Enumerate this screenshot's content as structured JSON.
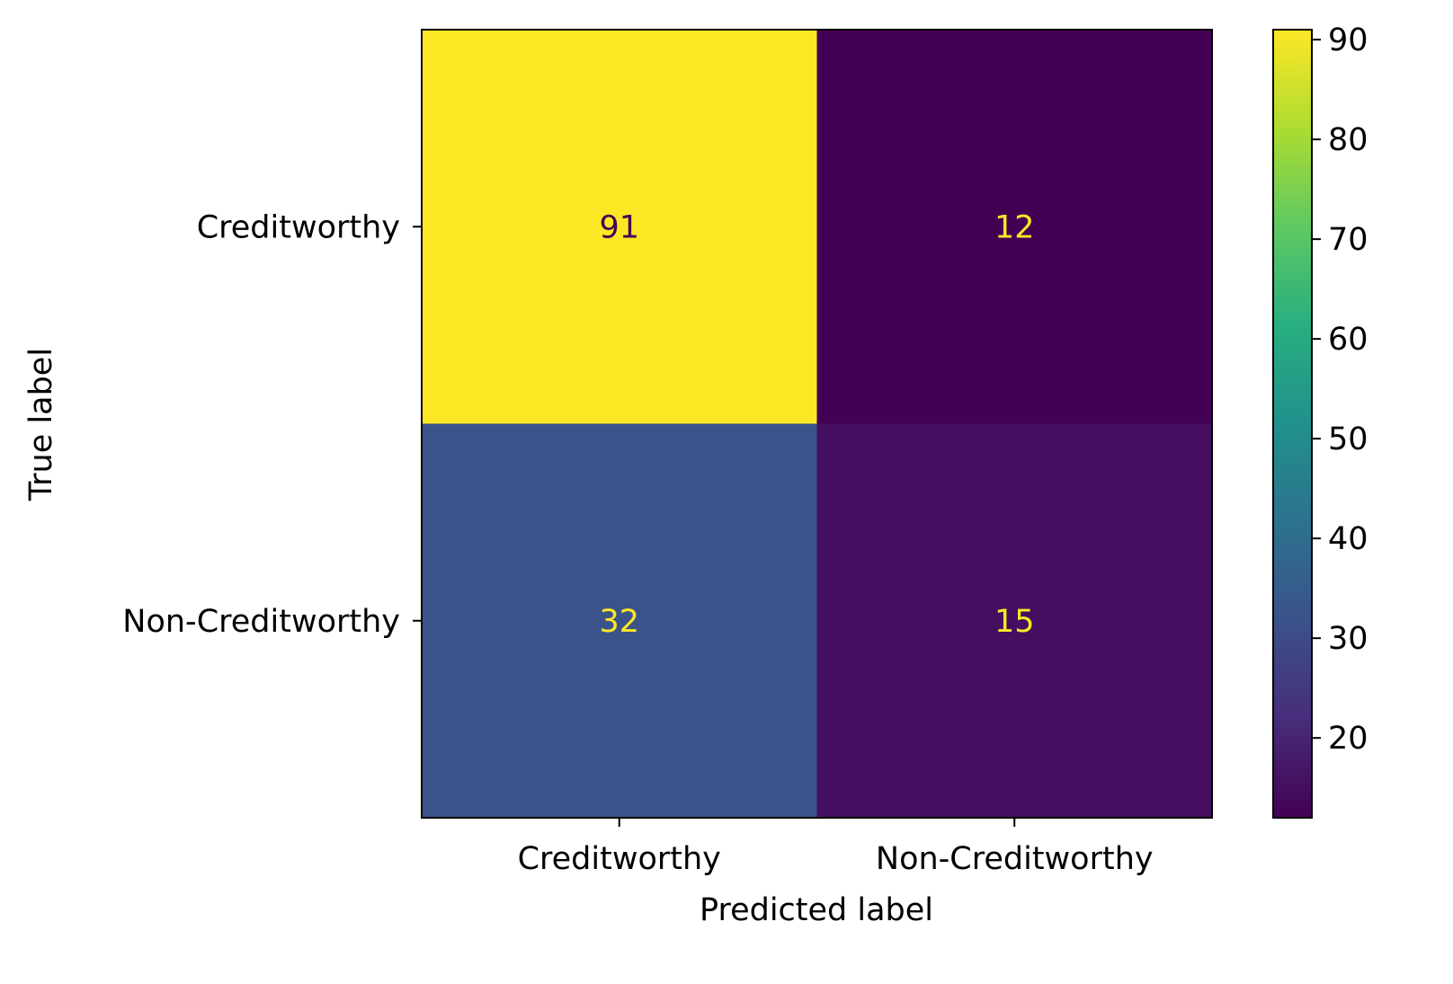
{
  "chart_data": {
    "type": "heatmap",
    "title": "",
    "xlabel": "Predicted label",
    "ylabel": "True label",
    "x_categories": [
      "Creditworthy",
      "Non-Creditworthy"
    ],
    "y_categories": [
      "Creditworthy",
      "Non-Creditworthy"
    ],
    "values": [
      [
        91,
        12
      ],
      [
        32,
        15
      ]
    ],
    "colormap": "viridis",
    "colorbar": {
      "range": [
        12,
        91
      ],
      "ticks": [
        20,
        30,
        40,
        50,
        60,
        70,
        80,
        90
      ]
    },
    "grid": false
  },
  "colors": {
    "low": "#440154",
    "high": "#fde725",
    "axis": "#000000"
  }
}
